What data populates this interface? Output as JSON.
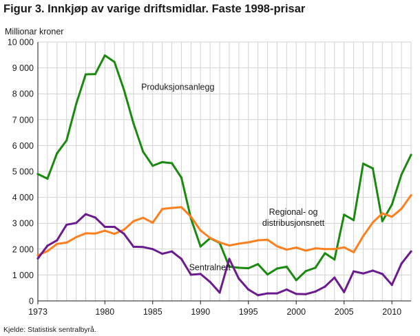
{
  "header": {
    "title": "Figur 3. Innkjøp av varige driftsmidlar. Faste 1998-prisar",
    "unit": "Millionar kroner"
  },
  "footer": {
    "source": "Kjelde: Statistisk sentralbyrå."
  },
  "chart_data": {
    "type": "line",
    "title": "Figur 3. Innkjøp av varige driftsmidlar. Faste 1998-prisar",
    "xlabel": "",
    "ylabel": "Millionar kroner",
    "ylim": [
      0,
      10000
    ],
    "xlim": [
      1973,
      2012
    ],
    "grid": true,
    "yticks": [
      0,
      1000,
      2000,
      3000,
      4000,
      5000,
      6000,
      7000,
      8000,
      9000,
      10000
    ],
    "ytick_labels": [
      "0",
      "1 000",
      "2 000",
      "3 000",
      "4 000",
      "5 000",
      "6 000",
      "7 000",
      "8 000",
      "9 000",
      "10 000"
    ],
    "xticks": [
      1973,
      1980,
      1985,
      1990,
      1995,
      2000,
      2005,
      2010
    ],
    "xtick_labels": [
      "1973",
      "1980",
      "1985",
      "1990",
      "1995",
      "2000",
      "2005",
      "2010"
    ],
    "x": [
      1973,
      1974,
      1975,
      1976,
      1977,
      1978,
      1979,
      1980,
      1981,
      1982,
      1983,
      1984,
      1985,
      1986,
      1987,
      1988,
      1989,
      1990,
      1991,
      1992,
      1993,
      1994,
      1995,
      1996,
      1997,
      1998,
      1999,
      2000,
      2001,
      2002,
      2003,
      2004,
      2005,
      2006,
      2007,
      2008,
      2009,
      2010,
      2011,
      2012
    ],
    "series": [
      {
        "name": "Produksjonsanlegg",
        "color": "#1a8a0f",
        "label_lines": [
          "Produksjonsanlegg"
        ],
        "label_at": [
          1983.8,
          8150
        ],
        "values": [
          4900,
          4720,
          5700,
          6200,
          7600,
          8750,
          8760,
          9480,
          9230,
          8150,
          6850,
          5760,
          5220,
          5360,
          5320,
          4760,
          3180,
          2100,
          2420,
          2240,
          1320,
          1280,
          1260,
          1420,
          1020,
          1250,
          1320,
          800,
          1150,
          1280,
          1840,
          1600,
          3330,
          3120,
          5300,
          5120,
          3080,
          3720,
          4880,
          5640
        ]
      },
      {
        "name": "Regional- og distribusjonsnett",
        "color": "#ff7f1f",
        "label_lines": [
          "Regional- og",
          "distribusjonsnett"
        ],
        "label_at": [
          1999.7,
          3320
        ],
        "values": [
          1760,
          1920,
          2200,
          2250,
          2460,
          2610,
          2600,
          2710,
          2590,
          2750,
          3080,
          3210,
          3020,
          3550,
          3590,
          3620,
          3250,
          2720,
          2430,
          2260,
          2140,
          2210,
          2260,
          2340,
          2360,
          2110,
          1980,
          2060,
          1940,
          2030,
          2000,
          2000,
          2070,
          1880,
          2500,
          3030,
          3380,
          3250,
          3560,
          4080
        ]
      },
      {
        "name": "Sentralnett",
        "color": "#6b1a8f",
        "label_lines": [
          "Sentralnett"
        ],
        "label_at": [
          1988.8,
          1180
        ],
        "values": [
          1640,
          2130,
          2340,
          2940,
          3010,
          3350,
          3220,
          2860,
          2860,
          2590,
          2090,
          2080,
          2000,
          1820,
          1910,
          1620,
          1010,
          1040,
          730,
          320,
          1620,
          860,
          440,
          220,
          290,
          290,
          440,
          270,
          260,
          360,
          550,
          900,
          340,
          1140,
          1060,
          1170,
          1040,
          620,
          1440,
          1910
        ]
      }
    ]
  }
}
